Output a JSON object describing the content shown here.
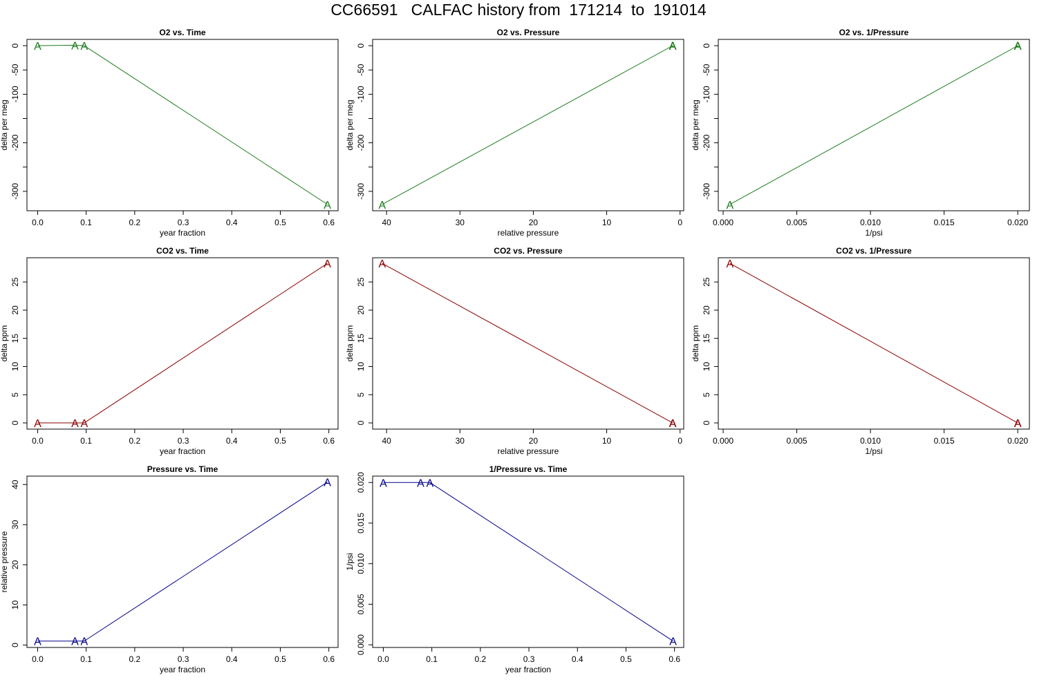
{
  "title": "CC66591   CALFAC history from  171214  to  191014",
  "colors": {
    "o2": "#1a7a1a",
    "co2": "#8b0000",
    "pressure": "#00008b"
  },
  "point_label": "A",
  "chart_data": [
    {
      "type": "line",
      "title": "O2 vs. Time",
      "xlabel": "year fraction",
      "ylabel": "delta per meg",
      "color_key": "o2",
      "x": [
        0.0,
        0.077,
        0.096,
        0.597
      ],
      "y": [
        0,
        1,
        0,
        -327
      ],
      "xlim": [
        -0.022,
        0.619
      ],
      "ylim": [
        -340,
        13
      ],
      "xticks": [
        0.0,
        0.1,
        0.2,
        0.3,
        0.4,
        0.5,
        0.6
      ],
      "xtick_labels": [
        "0.0",
        "0.1",
        "0.2",
        "0.3",
        "0.4",
        "0.5",
        "0.6"
      ],
      "yticks": [
        0,
        -50,
        -100,
        -150,
        -200,
        -250,
        -300
      ],
      "ytick_labels": [
        "0",
        "-50",
        "-100",
        "",
        "-200",
        "",
        "-300"
      ],
      "grid": false
    },
    {
      "type": "line",
      "title": "O2 vs. Pressure",
      "xlabel": "relative pressure",
      "ylabel": "delta per meg",
      "color_key": "o2",
      "x": [
        40.6,
        1.0,
        1.0,
        1.0
      ],
      "y": [
        -327,
        0,
        1,
        0
      ],
      "xlim": [
        41.9,
        -0.5
      ],
      "ylim": [
        -340,
        13
      ],
      "xticks": [
        40,
        30,
        20,
        10,
        0
      ],
      "xtick_labels": [
        "40",
        "30",
        "20",
        "10",
        "0"
      ],
      "yticks": [
        0,
        -50,
        -100,
        -150,
        -200,
        -250,
        -300
      ],
      "ytick_labels": [
        "0",
        "-50",
        "-100",
        "",
        "-200",
        "",
        "-300"
      ],
      "grid": false
    },
    {
      "type": "line",
      "title": "O2 vs. 1/Pressure",
      "xlabel": "1/psi",
      "ylabel": "delta per meg",
      "color_key": "o2",
      "x": [
        0.00046,
        0.02,
        0.02,
        0.02
      ],
      "y": [
        -327,
        0,
        1,
        0
      ],
      "xlim": [
        -0.00033,
        0.02079
      ],
      "ylim": [
        -340,
        13
      ],
      "xticks": [
        0.0,
        0.005,
        0.01,
        0.015,
        0.02
      ],
      "xtick_labels": [
        "0.000",
        "0.005",
        "0.010",
        "0.015",
        "0.020"
      ],
      "yticks": [
        0,
        -50,
        -100,
        -150,
        -200,
        -250,
        -300
      ],
      "ytick_labels": [
        "0",
        "-50",
        "-100",
        "",
        "-200",
        "",
        "-300"
      ],
      "grid": false
    },
    {
      "type": "line",
      "title": "CO2 vs. Time",
      "xlabel": "year fraction",
      "ylabel": "delta ppm",
      "color_key": "co2",
      "x": [
        0.0,
        0.077,
        0.096,
        0.597
      ],
      "y": [
        0,
        0,
        0,
        28.3
      ],
      "xlim": [
        -0.022,
        0.619
      ],
      "ylim": [
        -1.1,
        29.3
      ],
      "xticks": [
        0.0,
        0.1,
        0.2,
        0.3,
        0.4,
        0.5,
        0.6
      ],
      "xtick_labels": [
        "0.0",
        "0.1",
        "0.2",
        "0.3",
        "0.4",
        "0.5",
        "0.6"
      ],
      "yticks": [
        0,
        5,
        10,
        15,
        20,
        25
      ],
      "ytick_labels": [
        "0",
        "5",
        "10",
        "15",
        "20",
        "25"
      ],
      "grid": false
    },
    {
      "type": "line",
      "title": "CO2 vs. Pressure",
      "xlabel": "relative pressure",
      "ylabel": "delta ppm",
      "color_key": "co2",
      "x": [
        40.6,
        1.0,
        1.0,
        1.0
      ],
      "y": [
        28.3,
        0,
        0,
        0
      ],
      "xlim": [
        41.9,
        -0.5
      ],
      "ylim": [
        -1.1,
        29.3
      ],
      "xticks": [
        40,
        30,
        20,
        10,
        0
      ],
      "xtick_labels": [
        "40",
        "30",
        "20",
        "10",
        "0"
      ],
      "yticks": [
        0,
        5,
        10,
        15,
        20,
        25
      ],
      "ytick_labels": [
        "0",
        "5",
        "10",
        "15",
        "20",
        "25"
      ],
      "grid": false
    },
    {
      "type": "line",
      "title": "CO2 vs. 1/Pressure",
      "xlabel": "1/psi",
      "ylabel": "delta ppm",
      "color_key": "co2",
      "x": [
        0.00046,
        0.02,
        0.02,
        0.02
      ],
      "y": [
        28.3,
        0,
        0,
        0
      ],
      "xlim": [
        -0.00033,
        0.02079
      ],
      "ylim": [
        -1.1,
        29.3
      ],
      "xticks": [
        0.0,
        0.005,
        0.01,
        0.015,
        0.02
      ],
      "xtick_labels": [
        "0.000",
        "0.005",
        "0.010",
        "0.015",
        "0.020"
      ],
      "yticks": [
        0,
        5,
        10,
        15,
        20,
        25
      ],
      "ytick_labels": [
        "0",
        "5",
        "10",
        "15",
        "20",
        "25"
      ],
      "grid": false
    },
    {
      "type": "line",
      "title": "Pressure vs. Time",
      "xlabel": "year fraction",
      "ylabel": "relative pressure",
      "color_key": "pressure",
      "x": [
        0.0,
        0.077,
        0.096,
        0.597
      ],
      "y": [
        1.0,
        1.0,
        1.0,
        40.6
      ],
      "xlim": [
        -0.022,
        0.619
      ],
      "ylim": [
        -0.6,
        42.1
      ],
      "xticks": [
        0.0,
        0.1,
        0.2,
        0.3,
        0.4,
        0.5,
        0.6
      ],
      "xtick_labels": [
        "0.0",
        "0.1",
        "0.2",
        "0.3",
        "0.4",
        "0.5",
        "0.6"
      ],
      "yticks": [
        0,
        10,
        20,
        30,
        40
      ],
      "ytick_labels": [
        "0",
        "10",
        "20",
        "30",
        "40"
      ],
      "grid": false
    },
    {
      "type": "line",
      "title": "1/Pressure vs. Time",
      "xlabel": "year fraction",
      "ylabel": "1/psi",
      "color_key": "pressure",
      "x": [
        0.0,
        0.077,
        0.096,
        0.597
      ],
      "y": [
        0.02,
        0.02,
        0.02,
        0.00046
      ],
      "xlim": [
        -0.022,
        0.619
      ],
      "ylim": [
        -0.00033,
        0.02079
      ],
      "xticks": [
        0.0,
        0.1,
        0.2,
        0.3,
        0.4,
        0.5,
        0.6
      ],
      "xtick_labels": [
        "0.0",
        "0.1",
        "0.2",
        "0.3",
        "0.4",
        "0.5",
        "0.6"
      ],
      "yticks": [
        0.0,
        0.005,
        0.01,
        0.015,
        0.02
      ],
      "ytick_labels": [
        "0.000",
        "0.005",
        "0.010",
        "0.015",
        "0.020"
      ],
      "grid": false
    }
  ]
}
